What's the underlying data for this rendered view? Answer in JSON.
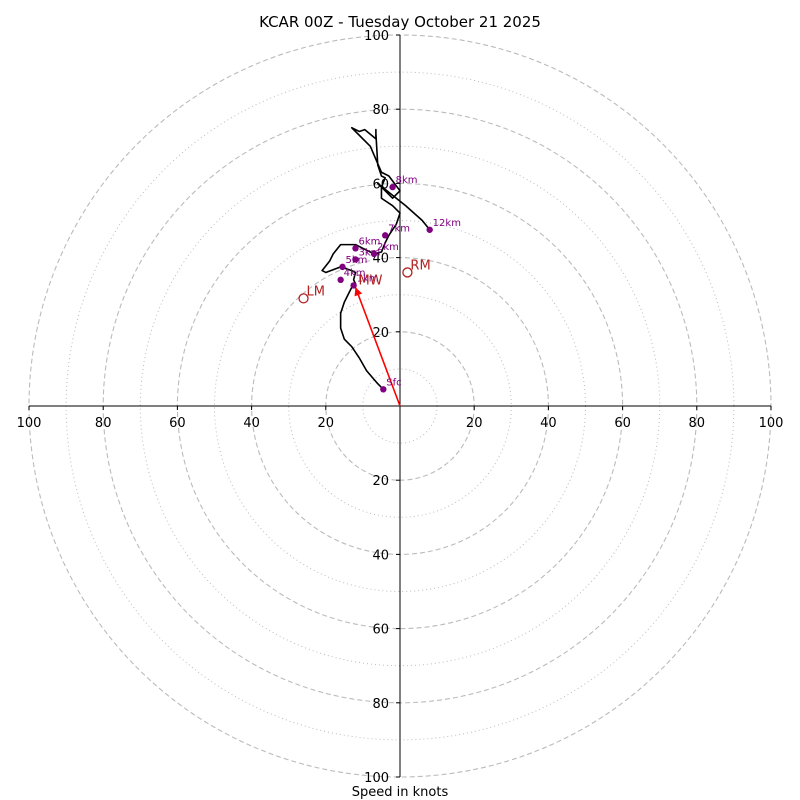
{
  "chart_data": {
    "type": "hodograph",
    "title": "KCAR 00Z - Tuesday October 21 2025",
    "xlabel": "Speed in knots",
    "xlim": [
      -100,
      100
    ],
    "ylim": [
      -100,
      100
    ],
    "ring_major": [
      20,
      40,
      60,
      80,
      100
    ],
    "ring_minor": [
      10,
      30,
      50,
      70,
      90
    ],
    "tick_labels": [
      "100",
      "80",
      "60",
      "40",
      "20"
    ],
    "colors": {
      "trace": "#000000",
      "height_marker": "#800080",
      "storm_motion": "#b22222",
      "shear_vector": "#ff0000",
      "ring": "#bbbbbb"
    },
    "trace": [
      [
        -4.5,
        4.5
      ],
      [
        -6,
        6
      ],
      [
        -9,
        9.5
      ],
      [
        -11,
        13
      ],
      [
        -13,
        16
      ],
      [
        -15,
        18
      ],
      [
        -16,
        21
      ],
      [
        -16,
        25
      ],
      [
        -15,
        28
      ],
      [
        -13,
        32
      ],
      [
        -12,
        33
      ],
      [
        -12.5,
        34
      ],
      [
        -12,
        36
      ],
      [
        -13,
        36.5
      ],
      [
        -16,
        37.5
      ],
      [
        -20,
        36
      ],
      [
        -21,
        36.5
      ],
      [
        -19,
        39
      ],
      [
        -18,
        41
      ],
      [
        -16,
        43.5
      ],
      [
        -12,
        43.5
      ],
      [
        -9,
        42
      ],
      [
        -7,
        41
      ],
      [
        -5,
        41.5
      ],
      [
        -4,
        44
      ],
      [
        -3,
        46
      ],
      [
        -1,
        49
      ],
      [
        0,
        52
      ],
      [
        -2,
        54
      ],
      [
        -5,
        56
      ],
      [
        -5,
        59
      ],
      [
        -4,
        61.5
      ],
      [
        -5,
        62
      ],
      [
        -6,
        65
      ],
      [
        -6.5,
        73.5
      ],
      [
        -6.5,
        74.5
      ],
      [
        -6.5,
        72
      ],
      [
        -9.5,
        74.5
      ],
      [
        -11,
        74
      ],
      [
        -13,
        75
      ],
      [
        -8,
        70
      ],
      [
        -5,
        63
      ],
      [
        -3,
        62
      ],
      [
        0,
        58
      ],
      [
        -2,
        56
      ],
      [
        -6,
        60
      ],
      [
        -1,
        56
      ],
      [
        1.5,
        54
      ],
      [
        6,
        50
      ],
      [
        8,
        47.5
      ]
    ],
    "height_points": [
      {
        "label": "Sfc",
        "u": -4.5,
        "v": 4.5
      },
      {
        "label": "1km",
        "u": -12.5,
        "v": 32.5
      },
      {
        "label": "2km",
        "u": -7,
        "v": 41
      },
      {
        "label": "3km",
        "u": -12,
        "v": 39.5
      },
      {
        "label": "4km",
        "u": -16,
        "v": 34
      },
      {
        "label": "5km",
        "u": -15.5,
        "v": 37.5
      },
      {
        "label": "6km",
        "u": -12,
        "v": 42.5
      },
      {
        "label": "7km",
        "u": -4,
        "v": 46
      },
      {
        "label": "8km",
        "u": -2,
        "v": 59
      },
      {
        "label": "12km",
        "u": 8,
        "v": 47.5
      }
    ],
    "storm_motion": [
      {
        "label": "RM",
        "u": 2,
        "v": 36
      },
      {
        "label": "LM",
        "u": -26,
        "v": 29
      },
      {
        "label": "MW",
        "u": -12,
        "v": 32
      }
    ],
    "shear_vector": {
      "from": [
        0,
        0
      ],
      "to": [
        -12,
        32
      ]
    }
  }
}
